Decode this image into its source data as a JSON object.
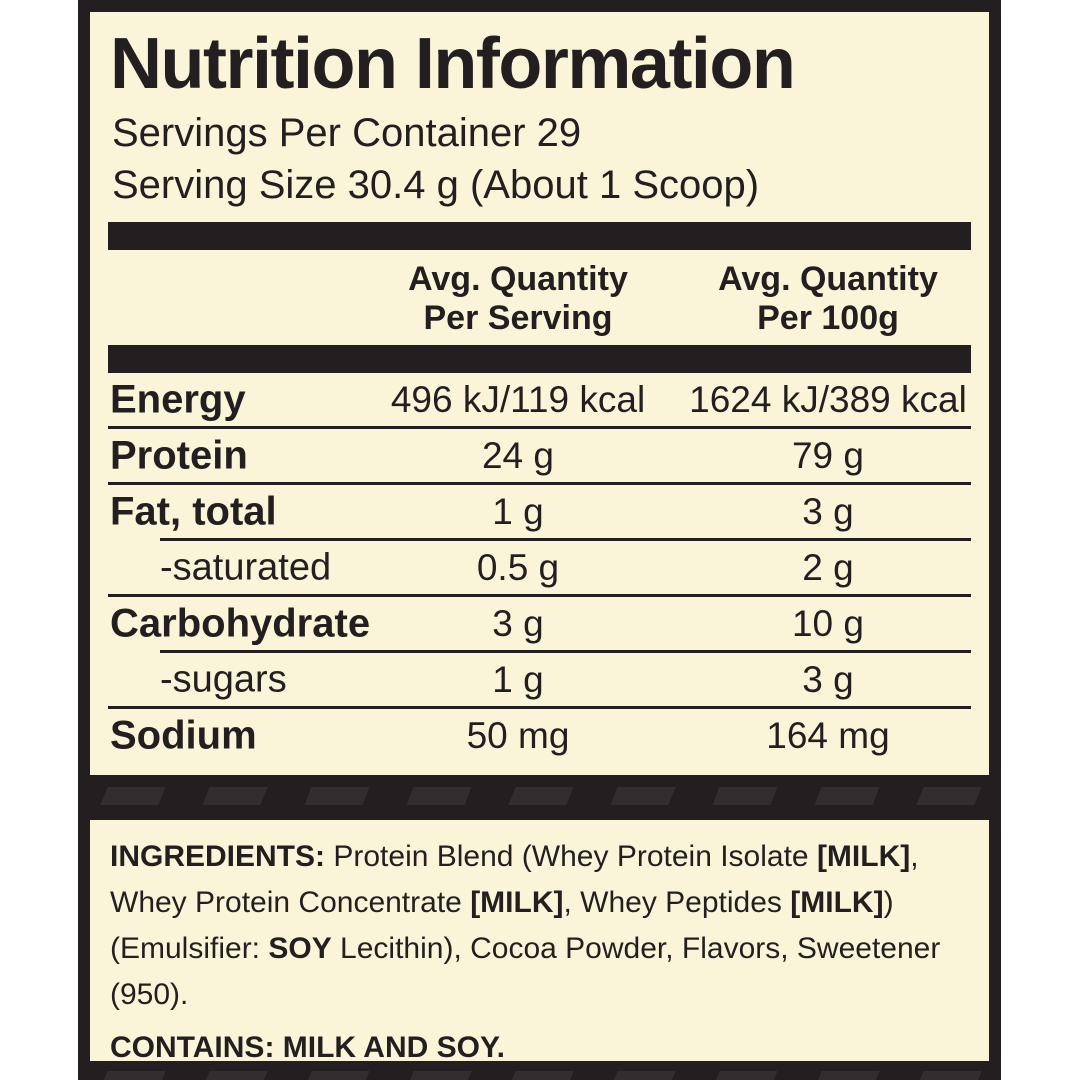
{
  "label": {
    "title": "Nutrition Information",
    "servings_per_container": "Servings Per Container 29",
    "serving_size": "Serving Size 30.4 g (About 1 Scoop)",
    "columns": {
      "per_serving": {
        "line1": "Avg. Quantity",
        "line2": "Per Serving"
      },
      "per_100g": {
        "line1": "Avg. Quantity",
        "line2": "Per 100g"
      }
    },
    "rows": [
      {
        "label": "Energy",
        "per_serving": "496 kJ/119 kcal",
        "per_100g": "1624 kJ/389 kcal"
      },
      {
        "label": "Protein",
        "per_serving": "24 g",
        "per_100g": "79 g"
      },
      {
        "label": "Fat, total",
        "per_serving": "1 g",
        "per_100g": "3 g"
      },
      {
        "label": "-saturated",
        "per_serving": "0.5 g",
        "per_100g": "2 g"
      },
      {
        "label": "Carbohydrate",
        "per_serving": "3 g",
        "per_100g": "10 g"
      },
      {
        "label": "-sugars",
        "per_serving": "1 g",
        "per_100g": "3 g"
      },
      {
        "label": "Sodium",
        "per_serving": "50 mg",
        "per_100g": "164 mg"
      }
    ],
    "ingredients": {
      "segments": [
        {
          "text": "INGREDIENTS: ",
          "bold": true
        },
        {
          "text": "Protein Blend (Whey Protein Isolate ",
          "bold": false
        },
        {
          "text": "[MILK]",
          "bold": true
        },
        {
          "text": ", Whey Protein Concentrate ",
          "bold": false
        },
        {
          "text": "[MILK]",
          "bold": true
        },
        {
          "text": ", Whey Peptides ",
          "bold": false
        },
        {
          "text": "[MILK]",
          "bold": true
        },
        {
          "text": ") (Emulsifier: ",
          "bold": false
        },
        {
          "text": "SOY",
          "bold": true
        },
        {
          "text": " Lecithin), Cocoa Powder, Flavors, Sweetener (950).",
          "bold": false
        }
      ]
    },
    "contains": "CONTAINS: MILK AND SOY.",
    "colors": {
      "background": "#FAF5D8",
      "dark": "#231F20",
      "stripe": "#322E2F",
      "page": "#FFFFFF"
    }
  }
}
